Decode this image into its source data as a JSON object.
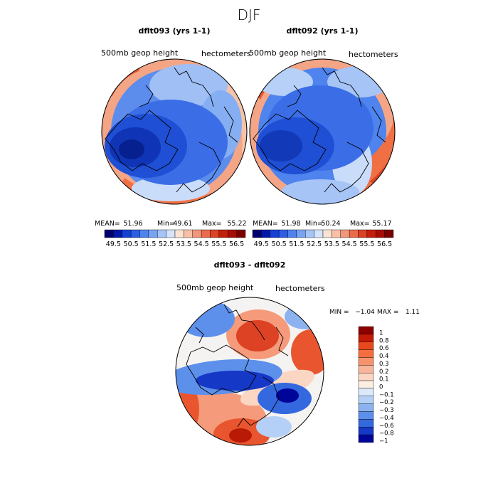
{
  "chart_data": {
    "type": "filled-contour-map",
    "title": "DJF",
    "panels": [
      {
        "id": "left",
        "heading": "dflt093 (yrs 1-1)",
        "field_label": "500mb  geop  height",
        "units": "hectometers",
        "stats": {
          "mean_label": "MEAN=",
          "mean": "51.96",
          "min_label": "Min=",
          "min": "49.61",
          "max_label": "Max=",
          "max": "55.22"
        }
      },
      {
        "id": "right",
        "heading": "dflt092 (yrs 1-1)",
        "field_label": "500mb  geop  height",
        "units": "hectometers",
        "stats": {
          "mean_label": "MEAN=",
          "mean": "51.98",
          "min_label": "Min=",
          "min": "50.24",
          "max_label": "Max=",
          "max": "55.17"
        }
      }
    ],
    "abs_scale": {
      "ticks": [
        "49.5",
        "50.5",
        "51.5",
        "52.5",
        "53.5",
        "54.5",
        "55.5",
        "56.5"
      ],
      "colors": [
        "#00006e",
        "#0019a8",
        "#1541d4",
        "#2c5fe6",
        "#4f83ee",
        "#77a3f2",
        "#a6c4f6",
        "#d4e5fb",
        "#fbe3d3",
        "#f8c0a6",
        "#f2957a",
        "#ea6b4c",
        "#dd4224",
        "#c41f0c",
        "#a50e04",
        "#7a0000"
      ]
    },
    "diff": {
      "heading": "dflt093 - dflt092",
      "field_label": "500mb  geop  height",
      "units": "hectometers",
      "min_label": "MIN =",
      "min": "−1.04",
      "max_label": "MAX =",
      "max": "1.11",
      "legend_labels": [
        "1",
        "0.8",
        "0.6",
        "0.4",
        "0.3",
        "0.2",
        "0.1",
        "0",
        "−0.1",
        "−0.2",
        "−0.3",
        "−0.4",
        "−0.6",
        "−0.8",
        "−1"
      ],
      "legend_colors": [
        "#8c0000",
        "#c21a05",
        "#e8481d",
        "#f46e3f",
        "#f7936c",
        "#f9b599",
        "#fbd6c3",
        "#fdeee4",
        "#dbe9fb",
        "#b4d0f6",
        "#8cb3f0",
        "#5d90ea",
        "#3468df",
        "#1638c6",
        "#00059a"
      ]
    },
    "palette": {
      "land_outline": "#000000",
      "cold_core": "#1538c4",
      "warm_core": "#d8361a"
    }
  }
}
